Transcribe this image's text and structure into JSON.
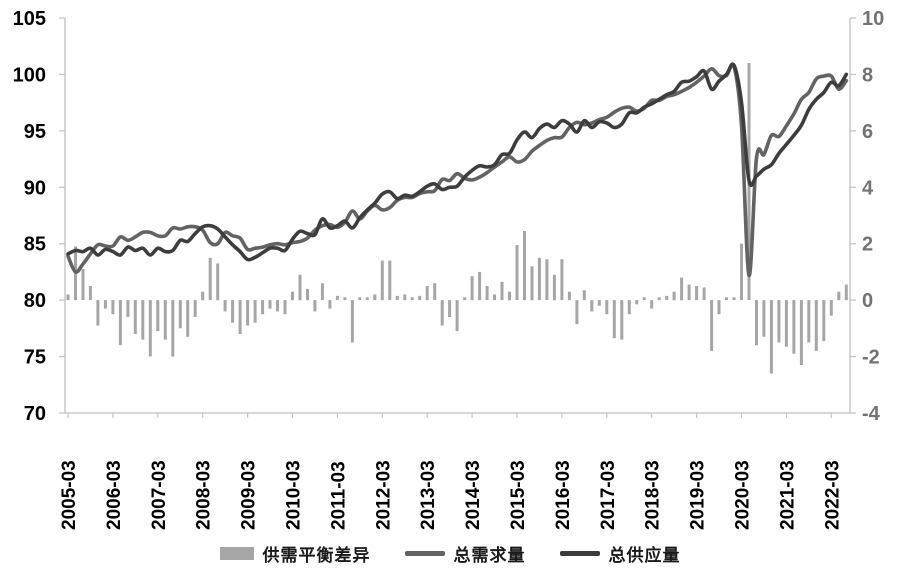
{
  "chart_data": {
    "type": "combo",
    "title": "",
    "x_start": "2005-03",
    "x_step_months": 2,
    "n_points": 105,
    "x_tick_labels": [
      "2005-03",
      "2006-03",
      "2007-03",
      "2008-03",
      "2009-03",
      "2010-03",
      "2011-03",
      "2012-03",
      "2013-03",
      "2014-03",
      "2015-03",
      "2016-03",
      "2017-03",
      "2018-03",
      "2019-03",
      "2020-03",
      "2021-03",
      "2022-03"
    ],
    "left_axis": {
      "min": 70,
      "max": 105,
      "step": 5,
      "tick_labels": [
        "105",
        "100",
        "95",
        "90",
        "85",
        "80",
        "75",
        "70"
      ],
      "color": "#000000"
    },
    "right_axis": {
      "min": -4,
      "max": 10,
      "step": 2,
      "tick_labels": [
        "10",
        "8",
        "6",
        "4",
        "2",
        "0",
        "-2",
        "-4"
      ],
      "color": "#737373"
    },
    "grid": false,
    "legend_position": "bottom",
    "series": [
      {
        "name": "供需平衡差异",
        "type": "bar",
        "axis": "right",
        "color": "#a6a6a6",
        "values": [
          0.2,
          1.9,
          1.1,
          0.5,
          -0.9,
          -0.3,
          -0.5,
          -1.6,
          -0.6,
          -1.2,
          -1.4,
          -2.0,
          -1.1,
          -1.4,
          -2.0,
          -1.0,
          -1.3,
          -0.6,
          0.3,
          1.5,
          1.3,
          -0.4,
          -0.8,
          -1.2,
          -0.9,
          -0.8,
          -0.5,
          -0.3,
          -0.4,
          -0.5,
          0.3,
          0.9,
          0.4,
          -0.4,
          0.6,
          -0.3,
          0.15,
          0.1,
          -1.5,
          0.1,
          0.1,
          0.2,
          1.4,
          1.4,
          0.15,
          0.2,
          0.1,
          0.15,
          0.5,
          0.6,
          -0.9,
          -0.6,
          -1.1,
          0.1,
          0.85,
          1.0,
          0.5,
          0.2,
          0.65,
          0.3,
          1.95,
          2.45,
          1.2,
          1.5,
          1.45,
          0.9,
          1.45,
          0.3,
          -0.85,
          0.35,
          -0.4,
          -0.2,
          -0.5,
          -1.35,
          -1.4,
          -0.5,
          -0.15,
          0.1,
          -0.3,
          0.1,
          0.15,
          0.3,
          0.8,
          0.55,
          0.5,
          0.45,
          -1.8,
          -0.5,
          0.1,
          0.1,
          2.0,
          8.4,
          -1.6,
          -1.3,
          -2.6,
          -1.5,
          -1.65,
          -1.9,
          -2.3,
          -1.5,
          -1.8,
          -1.45,
          -0.55,
          0.3,
          0.55
        ]
      },
      {
        "name": "总需求量",
        "type": "line",
        "axis": "left",
        "color": "#636363",
        "values": [
          83.9,
          82.5,
          83.2,
          84.1,
          84.9,
          84.8,
          84.8,
          85.6,
          85.3,
          85.6,
          86.0,
          86.0,
          85.7,
          85.7,
          86.4,
          86.3,
          86.5,
          86.5,
          86.2,
          85.1,
          85.0,
          86.0,
          85.7,
          85.5,
          84.5,
          84.6,
          84.7,
          84.9,
          85.0,
          84.9,
          85.1,
          85.2,
          85.5,
          86.2,
          86.6,
          86.7,
          86.45,
          86.9,
          87.9,
          87.2,
          87.9,
          88.4,
          88.0,
          88.2,
          88.85,
          89.1,
          89.1,
          89.45,
          89.6,
          89.7,
          90.7,
          90.6,
          91.2,
          90.8,
          90.65,
          90.9,
          91.3,
          91.8,
          92.25,
          92.7,
          92.25,
          92.45,
          93.2,
          93.7,
          94.15,
          94.4,
          94.45,
          95.3,
          95.75,
          95.55,
          95.7,
          96.0,
          96.2,
          96.65,
          97.0,
          97.1,
          96.75,
          97.0,
          97.7,
          97.7,
          98.05,
          98.2,
          98.5,
          98.85,
          99.3,
          99.85,
          100.5,
          99.9,
          99.9,
          100.7,
          95.5,
          82.2,
          92.6,
          92.9,
          94.6,
          94.5,
          95.45,
          96.5,
          97.8,
          98.4,
          99.6,
          99.85,
          99.85,
          98.7,
          99.45
        ]
      },
      {
        "name": "总供应量",
        "type": "line",
        "axis": "left",
        "color": "#3d3d3d",
        "values": [
          84.1,
          84.4,
          84.3,
          84.6,
          84.0,
          84.5,
          84.3,
          84.0,
          84.7,
          84.4,
          84.6,
          84.0,
          84.6,
          84.3,
          84.4,
          85.3,
          85.2,
          85.9,
          86.5,
          86.6,
          86.3,
          85.6,
          84.9,
          84.3,
          83.6,
          83.8,
          84.2,
          84.6,
          84.6,
          84.4,
          85.4,
          86.1,
          85.9,
          85.8,
          87.2,
          86.4,
          86.6,
          87.0,
          86.4,
          87.3,
          88.0,
          88.6,
          89.4,
          89.6,
          89.0,
          89.3,
          89.2,
          89.6,
          90.1,
          90.3,
          89.8,
          90.0,
          90.1,
          90.9,
          91.5,
          91.9,
          91.8,
          92.0,
          92.9,
          93.0,
          94.2,
          94.9,
          94.4,
          95.2,
          95.6,
          95.3,
          95.9,
          95.6,
          94.9,
          95.9,
          95.3,
          95.8,
          95.7,
          95.3,
          95.6,
          96.6,
          96.6,
          97.1,
          97.4,
          97.8,
          98.2,
          98.5,
          99.3,
          99.4,
          99.8,
          100.3,
          98.7,
          99.4,
          100.0,
          100.8,
          97.5,
          90.6,
          91.0,
          91.6,
          92.0,
          93.0,
          93.8,
          94.6,
          95.5,
          96.9,
          97.8,
          98.4,
          99.3,
          99.0,
          100.0
        ]
      }
    ]
  },
  "legend": {
    "items": [
      {
        "label": "供需平衡差异",
        "type": "bar",
        "color": "#a6a6a6"
      },
      {
        "label": "总需求量",
        "type": "line",
        "color": "#636363"
      },
      {
        "label": "总供应量",
        "type": "line",
        "color": "#3d3d3d"
      }
    ]
  },
  "style_colors": {
    "axis_line": "#bfbfbf",
    "tick": "#c6c6c6",
    "left_text": "#000000",
    "right_text": "#737373",
    "x_text": "#000000"
  }
}
